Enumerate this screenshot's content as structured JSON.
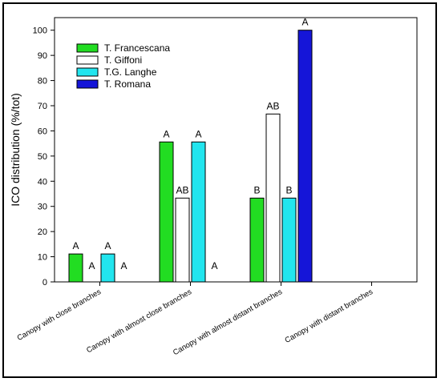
{
  "chart_data": {
    "type": "bar",
    "title": "",
    "xlabel": "",
    "ylabel": "ICO distribution (%/tot)",
    "ylim": [
      0,
      105
    ],
    "yticks": [
      0,
      10,
      20,
      30,
      40,
      50,
      60,
      70,
      80,
      90,
      100
    ],
    "categories": [
      "Canopy with close branches",
      "Canopy with almost close branches",
      "Canopy with almost distant branches",
      "Canopy with distant branches"
    ],
    "legend_position": "top-left",
    "series": [
      {
        "name": "T. Francescana",
        "color": "#22dd22",
        "values": [
          11.1,
          55.6,
          33.3,
          0
        ],
        "letters": [
          "A",
          "A",
          "B",
          ""
        ]
      },
      {
        "name": "T. Giffoni",
        "color": "#ffffff",
        "values": [
          0,
          33.3,
          66.7,
          0
        ],
        "letters": [
          "A",
          "AB",
          "AB",
          ""
        ]
      },
      {
        "name": "T.G. Langhe",
        "color": "#22e5ee",
        "values": [
          11.1,
          55.6,
          33.3,
          0
        ],
        "letters": [
          "A",
          "A",
          "B",
          ""
        ]
      },
      {
        "name": "T. Romana",
        "color": "#1515d8",
        "values": [
          0,
          0,
          100,
          0
        ],
        "letters": [
          "A",
          "A",
          "A",
          ""
        ]
      }
    ]
  }
}
